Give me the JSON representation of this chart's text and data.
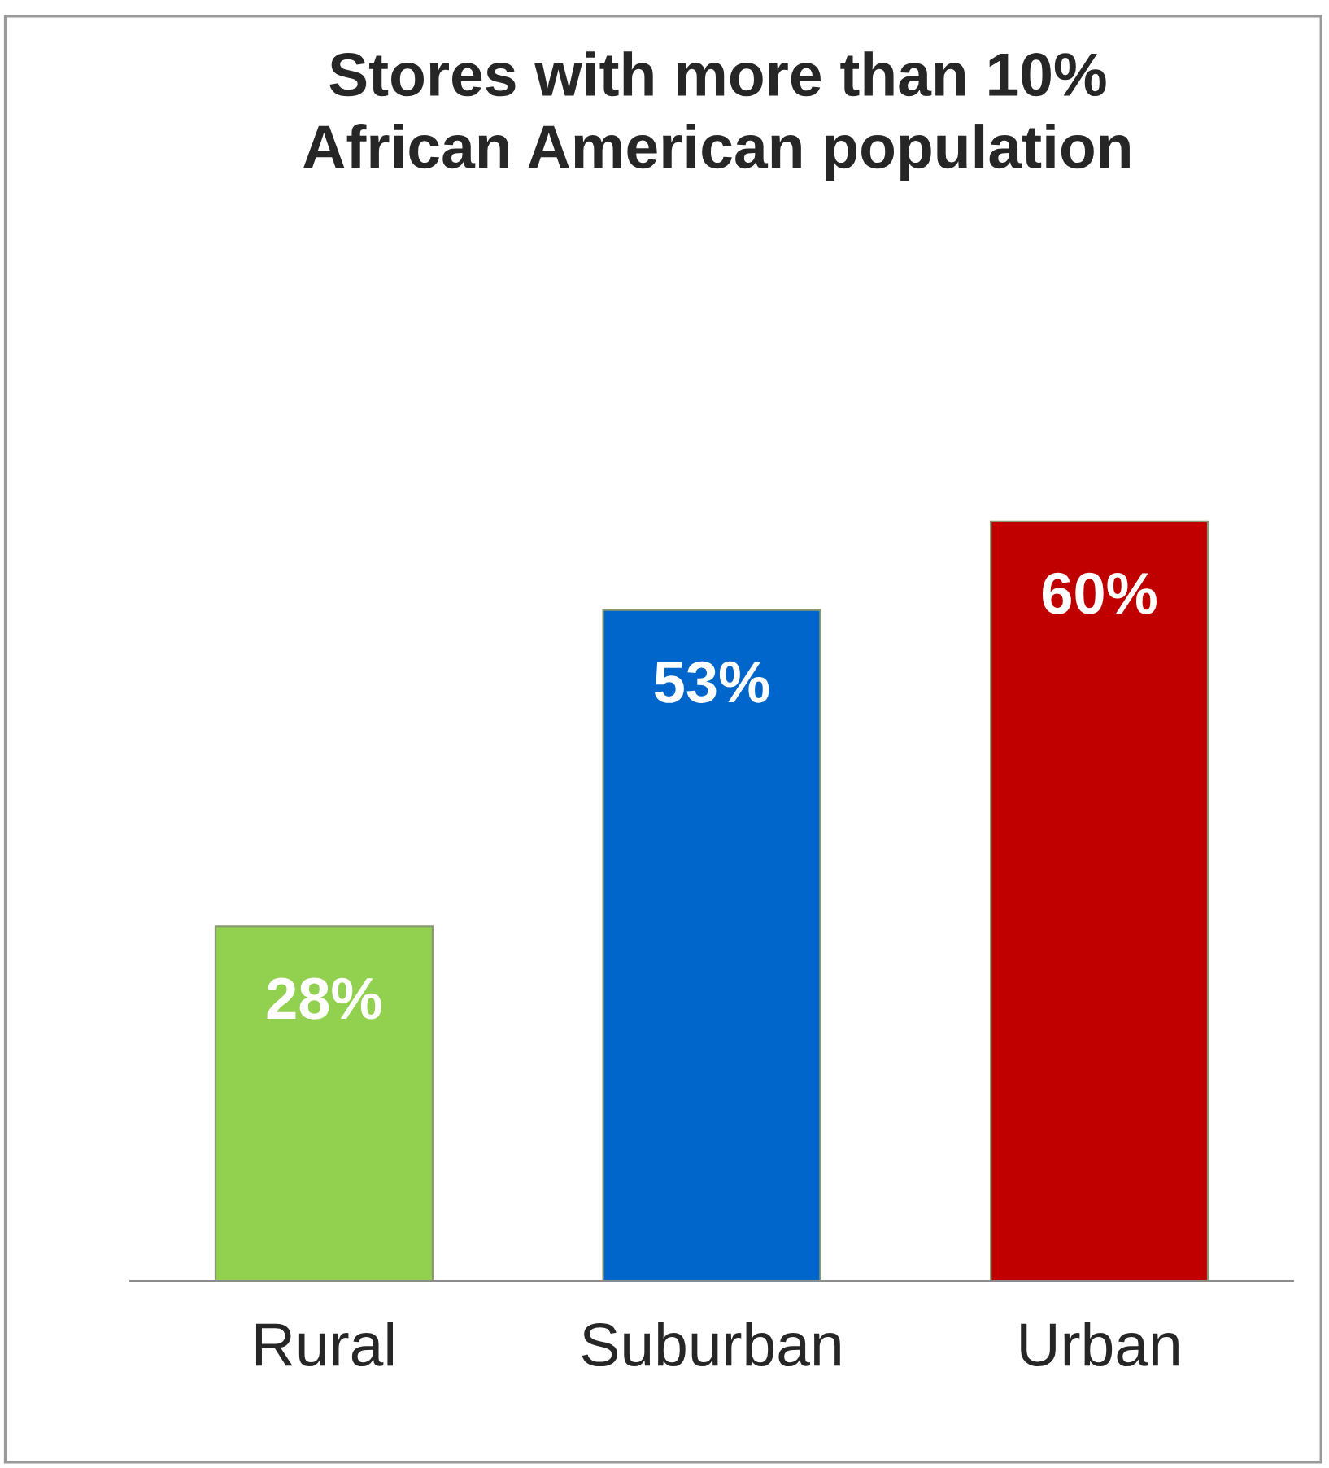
{
  "chart_data": {
    "type": "bar",
    "title": "Stores with more than 10%\nAfrican American population",
    "categories": [
      "Rural",
      "Suburban",
      "Urban"
    ],
    "values": [
      28,
      53,
      60
    ],
    "colors": [
      "#92d050",
      "#0066cc",
      "#c00000"
    ],
    "value_labels": [
      "28%",
      "53%",
      "60%"
    ],
    "grid": false,
    "legend": false
  }
}
